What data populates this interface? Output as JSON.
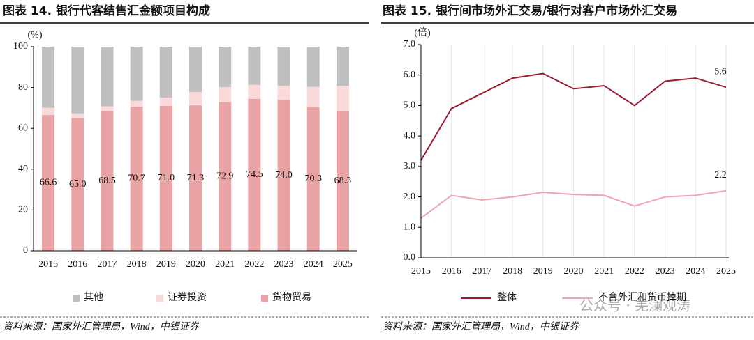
{
  "chart_data": [
    {
      "type": "stacked_bar",
      "title": "图表 14. 银行代客结售汇金额项目构成",
      "y_unit": "(%)",
      "categories": [
        "2015",
        "2016",
        "2017",
        "2018",
        "2019",
        "2020",
        "2021",
        "2022",
        "2023",
        "2024",
        "2025"
      ],
      "series": [
        {
          "name": "货物贸易",
          "color": "#e9a3a4",
          "values": [
            66.6,
            65.0,
            68.5,
            70.7,
            71.0,
            71.3,
            72.9,
            74.5,
            74.0,
            70.3,
            68.3
          ],
          "value_labels": [
            "66.6",
            "65.0",
            "68.5",
            "70.7",
            "71.0",
            "71.3",
            "72.9",
            "74.5",
            "74.0",
            "70.3",
            "68.3"
          ]
        },
        {
          "name": "证券投资",
          "color": "#f9d9da",
          "values": [
            3.5,
            2.3,
            2.3,
            2.8,
            4.0,
            6.5,
            7.3,
            6.8,
            6.8,
            10.0,
            12.5
          ]
        },
        {
          "name": "其他",
          "color": "#bfbfbf",
          "values": [
            29.9,
            32.7,
            29.2,
            26.5,
            25.0,
            22.2,
            19.8,
            18.7,
            19.2,
            19.7,
            19.2
          ]
        }
      ],
      "ylim": [
        0,
        100
      ],
      "yticks": [
        0,
        20,
        40,
        60,
        80,
        100
      ],
      "grid": false,
      "source": "资料来源：国家外汇管理局，Wind，中银证券"
    },
    {
      "type": "line",
      "title": "图表 15. 银行间市场外汇交易/银行对客户市场外汇交易",
      "y_unit": "(倍)",
      "categories": [
        "2015",
        "2016",
        "2017",
        "2018",
        "2019",
        "2020",
        "2021",
        "2022",
        "2023",
        "2024",
        "2025"
      ],
      "series": [
        {
          "name": "整体",
          "color": "#9b1c31",
          "values": [
            3.2,
            4.9,
            5.4,
            5.9,
            6.05,
            5.55,
            5.65,
            5.0,
            5.8,
            5.9,
            5.6
          ],
          "value_labels": [
            null,
            null,
            null,
            null,
            null,
            null,
            null,
            null,
            null,
            null,
            "5.6"
          ]
        },
        {
          "name": "不含外汇和货币掉期",
          "color": "#eba7ae",
          "values": [
            1.3,
            2.05,
            1.9,
            2.0,
            2.15,
            2.08,
            2.05,
            1.7,
            2.0,
            2.05,
            2.2
          ],
          "value_labels": [
            null,
            null,
            null,
            null,
            null,
            null,
            null,
            null,
            null,
            null,
            "2.2"
          ]
        }
      ],
      "ylim": [
        0,
        7
      ],
      "yticks": [
        {
          "value": 0,
          "label": "0.0"
        },
        {
          "value": 1,
          "label": "1.0"
        },
        {
          "value": 2,
          "label": "2.0"
        },
        {
          "value": 3,
          "label": "3.0"
        },
        {
          "value": 4,
          "label": "4.0"
        },
        {
          "value": 5,
          "label": "5.0"
        },
        {
          "value": 6,
          "label": "6.0"
        },
        {
          "value": 7,
          "label": "7.0"
        }
      ],
      "grid": true,
      "source": "资料来源：国家外汇管理局，Wind，中银证券"
    }
  ],
  "watermark": "公众号 · 羌澜观涛"
}
